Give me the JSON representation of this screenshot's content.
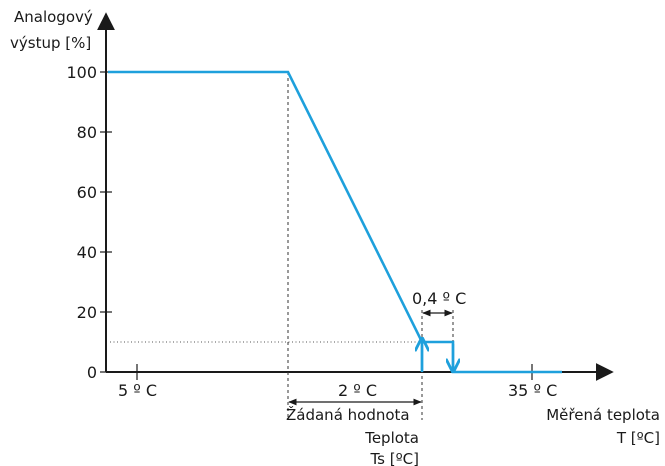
{
  "chart_data": {
    "type": "line",
    "title": "",
    "ylabel_lines": [
      "Analogový",
      "výstup [%]"
    ],
    "xlabel_lines": [
      "Měřená teplota",
      "T [ºC]"
    ],
    "ylim": [
      0,
      100
    ],
    "yticks": [
      {
        "value": 0,
        "label": "0"
      },
      {
        "value": 20,
        "label": "20"
      },
      {
        "value": 40,
        "label": "40"
      },
      {
        "value": 60,
        "label": "60"
      },
      {
        "value": 80,
        "label": "80"
      },
      {
        "value": 100,
        "label": "100"
      }
    ],
    "x_markers": [
      {
        "label": "5 º C"
      },
      {
        "label": "35 º C"
      }
    ],
    "band_label": "2 º C",
    "hysteresis_label": "0,4 º C",
    "setpoint_label_lines": [
      "Žádaná hodnota",
      "Teplota",
      "Ts [ºC]"
    ],
    "series": [
      {
        "color": "#1ea0dc",
        "points": [
          {
            "x": "start",
            "y": 100
          },
          {
            "x": "band_start",
            "y": 100
          },
          {
            "x": "band_end",
            "y": 10
          },
          {
            "x": "hyst_end",
            "y": 10
          },
          {
            "x": "hyst_end",
            "y": 0
          },
          {
            "x": "axis_end",
            "y": 0
          }
        ]
      }
    ],
    "min_output_level": 10,
    "axis_color": "#1a1a1a",
    "guide_color": "#333333",
    "line_color": "#1ea0dc"
  }
}
